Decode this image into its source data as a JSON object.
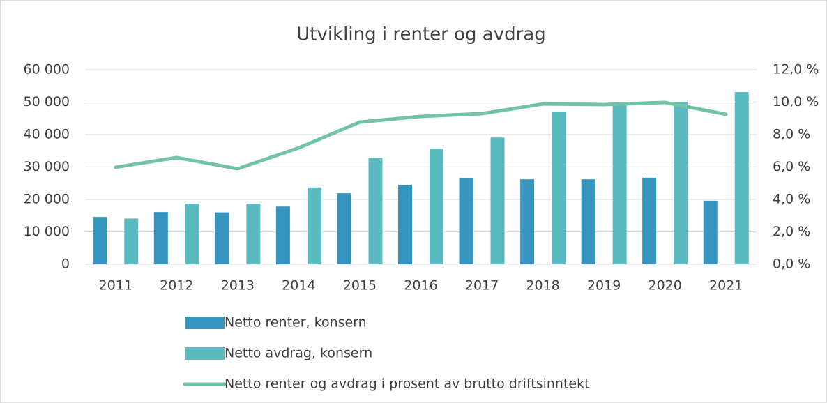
{
  "chart_data": {
    "type": "bar_line",
    "title": "Utvikling i renter og avdrag",
    "categories": [
      "2011",
      "2012",
      "2013",
      "2014",
      "2015",
      "2016",
      "2017",
      "2018",
      "2019",
      "2020",
      "2021"
    ],
    "series": [
      {
        "name": "Netto renter, konsern",
        "type": "bar",
        "color": "#3595bf",
        "values": [
          14600,
          16100,
          16000,
          17800,
          21900,
          24500,
          26500,
          26200,
          26200,
          26700,
          19600
        ]
      },
      {
        "name": "Netto avdrag, konsern",
        "type": "bar",
        "color": "#5bbac0",
        "values": [
          14100,
          18700,
          18700,
          23700,
          32900,
          35700,
          39100,
          47100,
          49500,
          50100,
          53100
        ]
      },
      {
        "name": "Netto renter og avdrag i prosent av brutto driftsinntekt",
        "type": "line",
        "axis": "y2",
        "color": "#72c3a6",
        "values": [
          5.98,
          6.58,
          5.89,
          7.18,
          8.77,
          9.12,
          9.29,
          9.89,
          9.85,
          9.98,
          9.25
        ]
      }
    ],
    "ylim": [
      0,
      60000
    ],
    "yticks": [
      0,
      {
        "value": 10000,
        "label": "10 000"
      },
      {
        "value": 20000,
        "label": "20 000"
      },
      {
        "value": 30000,
        "label": "30 000"
      },
      {
        "value": 40000,
        "label": "40 000"
      },
      {
        "value": 50000,
        "label": "50 000"
      },
      {
        "value": 60000,
        "label": "60 000"
      }
    ],
    "y2lim": [
      0,
      12
    ],
    "y2ticks": [
      {
        "value": 0,
        "label": "0,0 %"
      },
      {
        "value": 2,
        "label": "2,0 %"
      },
      {
        "value": 4,
        "label": "4,0 %"
      },
      {
        "value": 6,
        "label": "6,0 %"
      },
      {
        "value": 8,
        "label": "8,0 %"
      },
      {
        "value": 10,
        "label": "10,0 %"
      },
      {
        "value": 12,
        "label": "12,0 %"
      }
    ],
    "grid": true,
    "legend": "bottom"
  }
}
